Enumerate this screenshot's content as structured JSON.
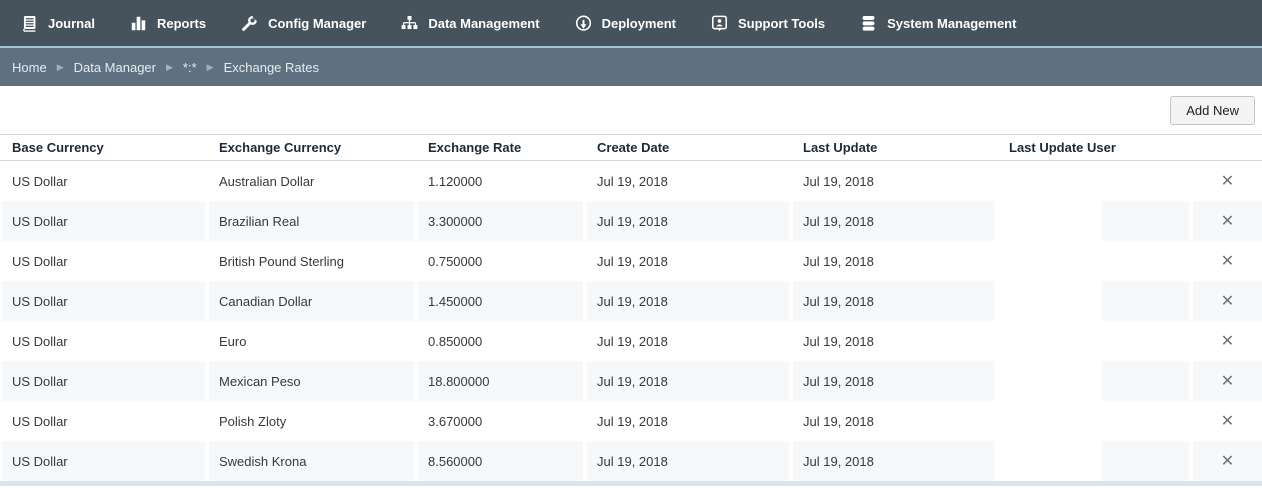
{
  "nav": {
    "items": [
      {
        "label": "Journal",
        "icon": "journal-icon"
      },
      {
        "label": "Reports",
        "icon": "reports-icon"
      },
      {
        "label": "Config Manager",
        "icon": "wrench-icon"
      },
      {
        "label": "Data Management",
        "icon": "sitemap-icon"
      },
      {
        "label": "Deployment",
        "icon": "deployment-icon"
      },
      {
        "label": "Support Tools",
        "icon": "support-person-icon"
      },
      {
        "label": "System Management",
        "icon": "database-icon"
      }
    ]
  },
  "breadcrumb": {
    "separator": "▶",
    "items": [
      "Home",
      "Data Manager",
      "*:*",
      "Exchange Rates"
    ]
  },
  "toolbar": {
    "add_new_label": "Add New"
  },
  "table": {
    "columns": [
      "Base Currency",
      "Exchange Currency",
      "Exchange Rate",
      "Create Date",
      "Last Update",
      "Last Update User"
    ],
    "column_keys": [
      "base-currency",
      "exchange-currency",
      "exchange-rate",
      "create-date",
      "last-update",
      "last-update-user"
    ],
    "delete_glyph": "✕",
    "rows": [
      [
        "US Dollar",
        "Australian Dollar",
        "1.120000",
        "Jul 19, 2018",
        "Jul 19, 2018",
        ""
      ],
      [
        "US Dollar",
        "Brazilian Real",
        "3.300000",
        "Jul 19, 2018",
        "Jul 19, 2018",
        ""
      ],
      [
        "US Dollar",
        "British Pound Sterling",
        "0.750000",
        "Jul 19, 2018",
        "Jul 19, 2018",
        ""
      ],
      [
        "US Dollar",
        "Canadian Dollar",
        "1.450000",
        "Jul 19, 2018",
        "Jul 19, 2018",
        ""
      ],
      [
        "US Dollar",
        "Euro",
        "0.850000",
        "Jul 19, 2018",
        "Jul 19, 2018",
        ""
      ],
      [
        "US Dollar",
        "Mexican Peso",
        "18.800000",
        "Jul 19, 2018",
        "Jul 19, 2018",
        ""
      ],
      [
        "US Dollar",
        "Polish Zloty",
        "3.670000",
        "Jul 19, 2018",
        "Jul 19, 2018",
        ""
      ],
      [
        "US Dollar",
        "Swedish Krona",
        "8.560000",
        "Jul 19, 2018",
        "Jul 19, 2018",
        ""
      ]
    ]
  },
  "colors": {
    "nav_bg": "#46525c",
    "nav_accent_line": "#a6c2d4",
    "breadcrumb_bg": "#5f7181",
    "row_stripe": "#f6f8fa",
    "header_text": "#1b2a38",
    "cell_text": "#333a40",
    "delete_icon": "#6a747b"
  }
}
